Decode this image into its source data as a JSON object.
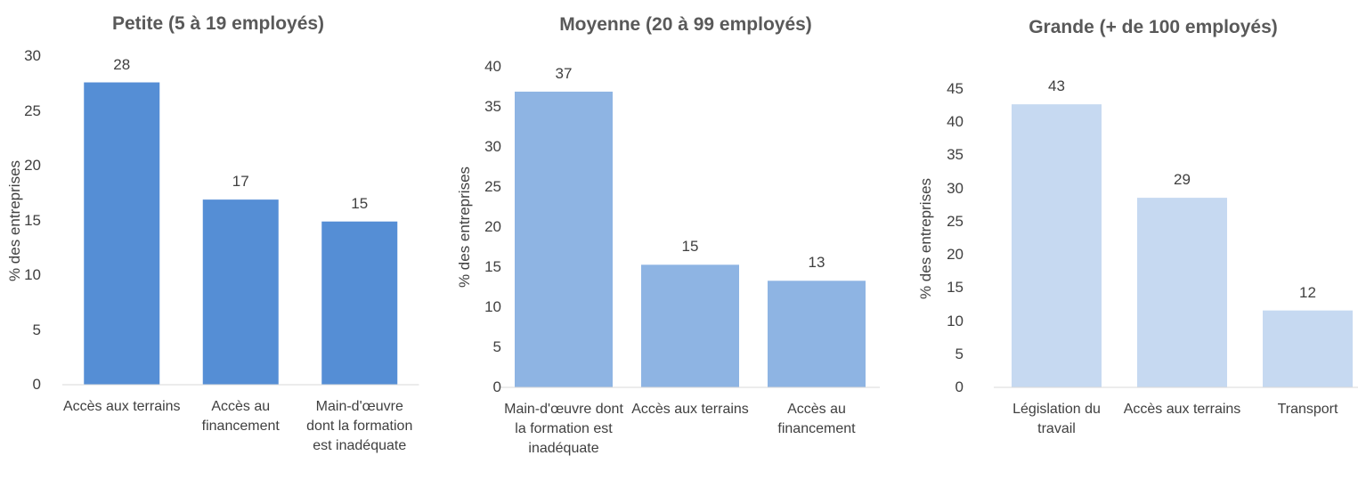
{
  "chart_data": [
    {
      "type": "bar",
      "title": "Petite (5 à 19 employés)",
      "y_label": "% des entreprises",
      "categories": [
        "Accès aux terrains",
        "Accès au financement",
        "Main-d'œuvre dont la formation est inadéquate"
      ],
      "values": [
        27.6,
        16.9,
        14.9
      ],
      "value_labels": [
        "28",
        "17",
        "15"
      ],
      "color": "#558ed5",
      "ylim": [
        0,
        30
      ],
      "yticks": [
        0,
        5,
        10,
        15,
        20,
        25,
        30
      ],
      "grid": false
    },
    {
      "type": "bar",
      "title": "Moyenne (20 à 99 employés)",
      "y_label": "% des entreprises",
      "categories": [
        "Main-d'œuvre dont la formation est inadéquate",
        "Accès aux terrains",
        "Accès au financement"
      ],
      "values": [
        36.9,
        15.3,
        13.3
      ],
      "value_labels": [
        "37",
        "15",
        "13"
      ],
      "color": "#8eb4e3",
      "ylim": [
        0,
        40
      ],
      "yticks": [
        0,
        5,
        10,
        15,
        20,
        25,
        30,
        35,
        40
      ],
      "grid": false
    },
    {
      "type": "bar",
      "title": "Grande (+ de 100 employés)",
      "y_label": "% des entreprises",
      "categories": [
        "Législation du travail",
        "Accès aux terrains",
        "Transport"
      ],
      "values": [
        42.7,
        28.6,
        11.6
      ],
      "value_labels": [
        "43",
        "29",
        "12"
      ],
      "color": "#c6d9f1",
      "ylim": [
        0,
        45
      ],
      "yticks": [
        0,
        5,
        10,
        15,
        20,
        25,
        30,
        35,
        40,
        45
      ],
      "grid": false
    }
  ]
}
